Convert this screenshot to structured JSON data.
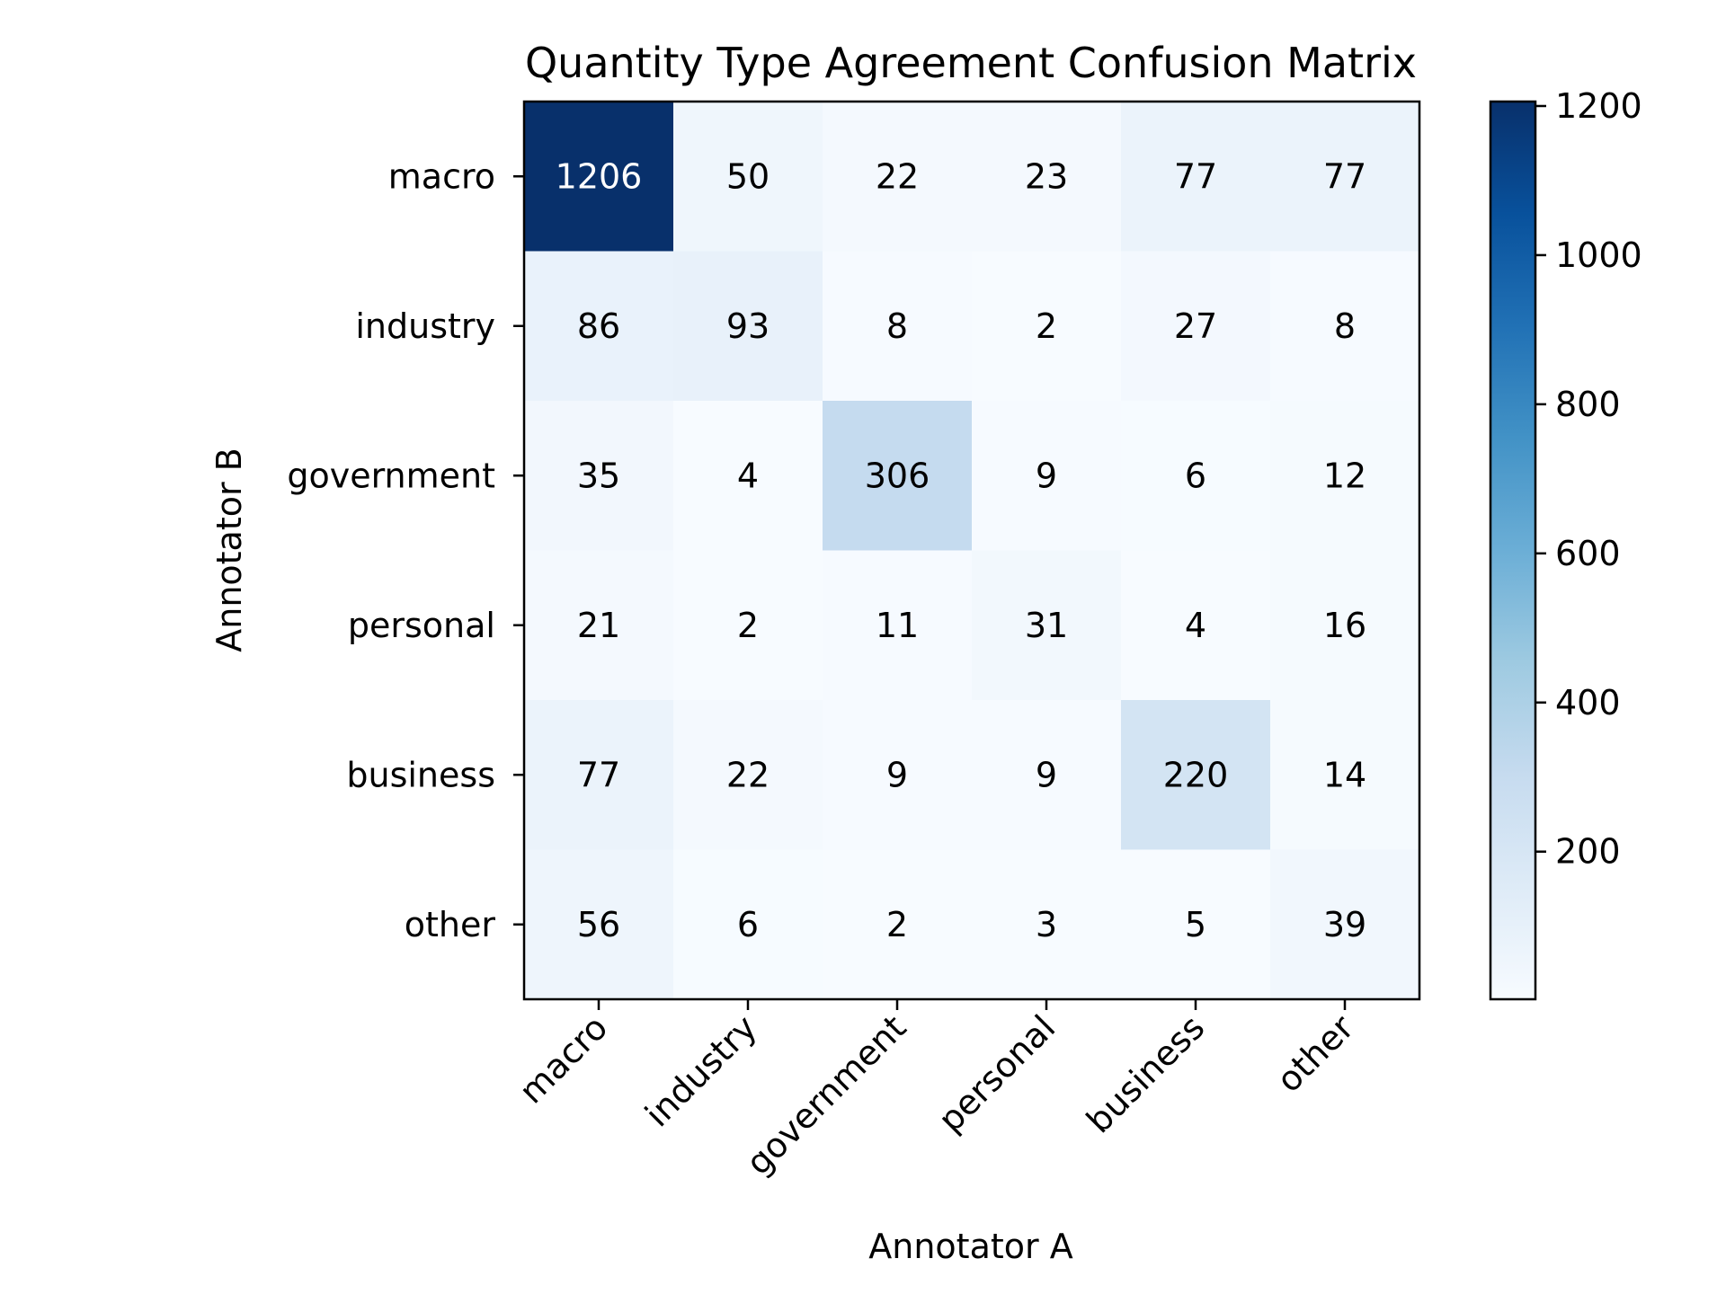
{
  "chart_data": {
    "type": "heatmap",
    "title": "Quantity Type Agreement Confusion Matrix",
    "xlabel": "Annotator A",
    "ylabel": "Annotator B",
    "x_categories": [
      "macro",
      "industry",
      "government",
      "personal",
      "business",
      "other"
    ],
    "y_categories": [
      "macro",
      "industry",
      "government",
      "personal",
      "business",
      "other"
    ],
    "values": [
      [
        1206,
        50,
        22,
        23,
        77,
        77
      ],
      [
        86,
        93,
        8,
        2,
        27,
        8
      ],
      [
        35,
        4,
        306,
        9,
        6,
        12
      ],
      [
        21,
        2,
        11,
        31,
        4,
        16
      ],
      [
        77,
        22,
        9,
        9,
        220,
        14
      ],
      [
        56,
        6,
        2,
        3,
        5,
        39
      ]
    ],
    "colormap": "Blues",
    "color_range": [
      2,
      1206
    ],
    "colorbar_ticks": [
      200,
      400,
      600,
      800,
      1000,
      1200
    ],
    "grid": false
  }
}
